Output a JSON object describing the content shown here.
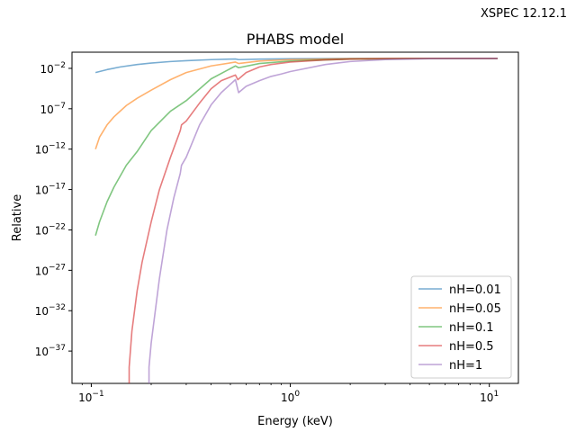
{
  "header_note": "XSPEC 12.12.1",
  "chart_data": {
    "type": "line",
    "title": "PHABS model",
    "xlabel": "Energy (keV)",
    "ylabel": "Relative",
    "x_scale": "log",
    "y_scale": "log",
    "xlim": [
      0.08,
      14
    ],
    "ylim": [
      1e-41,
      1
    ],
    "x_ticks": [
      {
        "value": 0.1,
        "base": "10",
        "exp": "−1"
      },
      {
        "value": 1,
        "base": "10",
        "exp": "0"
      },
      {
        "value": 10,
        "base": "10",
        "exp": "1"
      }
    ],
    "y_ticks": [
      {
        "value": 0.01,
        "base": "10",
        "exp": "−2"
      },
      {
        "value": 1e-07,
        "base": "10",
        "exp": "−7"
      },
      {
        "value": 1e-12,
        "base": "10",
        "exp": "−12"
      },
      {
        "value": 1e-17,
        "base": "10",
        "exp": "−17"
      },
      {
        "value": 1e-22,
        "base": "10",
        "exp": "−22"
      },
      {
        "value": 1e-27,
        "base": "10",
        "exp": "−27"
      },
      {
        "value": 1e-32,
        "base": "10",
        "exp": "−32"
      },
      {
        "value": 1e-37,
        "base": "10",
        "exp": "−37"
      }
    ],
    "legend_position": "lower-right",
    "series": [
      {
        "name": "nH=0.01",
        "color": "#1f77b4",
        "x": [
          0.105,
          0.12,
          0.14,
          0.17,
          0.2,
          0.25,
          0.3,
          0.4,
          0.5,
          0.53,
          0.55,
          0.7,
          1,
          2,
          5,
          11
        ],
        "y": [
          0.003,
          0.007,
          0.015,
          0.03,
          0.045,
          0.07,
          0.09,
          0.12,
          0.14,
          0.145,
          0.12,
          0.14,
          0.155,
          0.165,
          0.17,
          0.17
        ]
      },
      {
        "name": "nH=0.05",
        "color": "#ff7f0e",
        "x": [
          0.105,
          0.11,
          0.12,
          0.13,
          0.15,
          0.17,
          0.2,
          0.25,
          0.3,
          0.4,
          0.53,
          0.55,
          0.7,
          1,
          2,
          5,
          11
        ],
        "y": [
          1e-12,
          3e-11,
          1e-09,
          1e-08,
          2.5e-07,
          2e-06,
          2e-05,
          0.0004,
          0.003,
          0.02,
          0.06,
          0.04,
          0.08,
          0.12,
          0.16,
          0.17,
          0.17
        ]
      },
      {
        "name": "nH=0.1",
        "color": "#2ca02c",
        "x": [
          0.105,
          0.11,
          0.12,
          0.13,
          0.15,
          0.17,
          0.2,
          0.25,
          0.3,
          0.4,
          0.53,
          0.55,
          0.7,
          1,
          2,
          5,
          11
        ],
        "y": [
          2e-23,
          1e-21,
          3e-19,
          2e-17,
          1e-14,
          5e-13,
          2e-10,
          5e-08,
          1e-06,
          0.0005,
          0.02,
          0.012,
          0.04,
          0.08,
          0.14,
          0.165,
          0.17
        ]
      },
      {
        "name": "nH=0.5",
        "color": "#d62728",
        "x": [
          0.155,
          0.155,
          0.16,
          0.17,
          0.18,
          0.2,
          0.22,
          0.25,
          0.28,
          0.284,
          0.3,
          0.35,
          0.4,
          0.45,
          0.53,
          0.545,
          0.6,
          0.7,
          0.8,
          1,
          1.5,
          2,
          3,
          5,
          11
        ],
        "y": [
          1e-41,
          1e-39,
          3e-35,
          3e-30,
          1e-26,
          1e-21,
          1e-17,
          1e-13,
          2e-10,
          1e-09,
          3e-09,
          5e-07,
          3e-05,
          0.0003,
          0.0015,
          0.0004,
          0.003,
          0.015,
          0.03,
          0.06,
          0.11,
          0.14,
          0.16,
          0.17,
          0.17
        ]
      },
      {
        "name": "nH=1",
        "color": "#9467bd",
        "x": [
          0.195,
          0.195,
          0.2,
          0.22,
          0.24,
          0.26,
          0.28,
          0.284,
          0.3,
          0.35,
          0.4,
          0.45,
          0.53,
          0.55,
          0.6,
          0.7,
          0.8,
          0.9,
          1,
          1.5,
          2,
          3,
          5,
          11
        ],
        "y": [
          1e-41,
          1e-39,
          1e-36,
          1e-28,
          1e-22,
          1e-18,
          1e-15,
          1e-14,
          1e-13,
          1e-09,
          3e-07,
          1e-05,
          0.0004,
          1e-05,
          6e-05,
          0.0003,
          0.001,
          0.002,
          0.004,
          0.03,
          0.07,
          0.12,
          0.16,
          0.17
        ]
      }
    ]
  }
}
